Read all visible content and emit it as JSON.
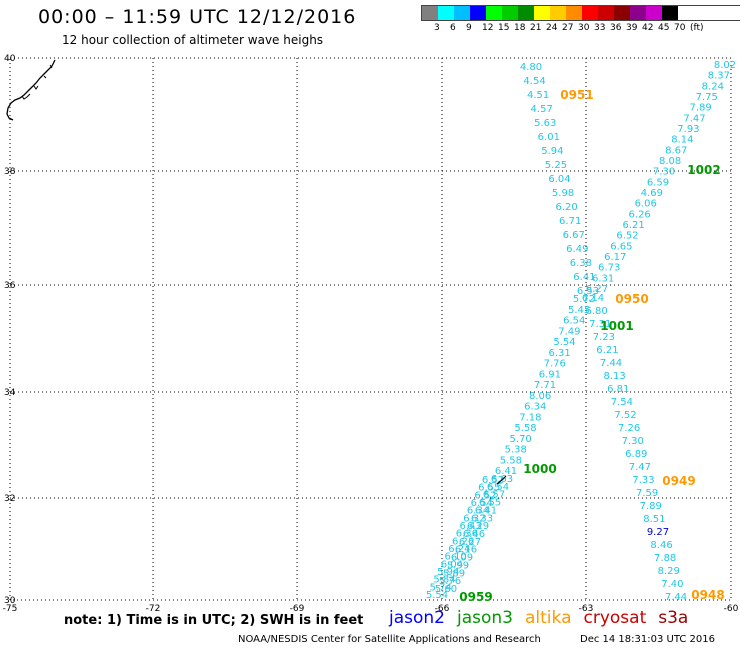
{
  "title": "00:00 – 11:59 UTC 12/12/2016",
  "subtitle": "12 hour collection of altimeter wave heighs",
  "legend": {
    "colors": [
      "#808080",
      "#00ffff",
      "#00bfff",
      "#0000ff",
      "#00ff00",
      "#00cc00",
      "#008c00",
      "#ffff00",
      "#ffcc00",
      "#ff8c00",
      "#ff0000",
      "#cc0000",
      "#8b0000",
      "#8c008c",
      "#cc00cc",
      "#000000"
    ],
    "labels": [
      "3",
      "6",
      "9",
      "12",
      "15",
      "18",
      "21",
      "24",
      "27",
      "30",
      "33",
      "36",
      "39",
      "42",
      "45",
      "70",
      "(ft)"
    ]
  },
  "axes": {
    "x_ticks": [
      "-75",
      "-72",
      "-69",
      "-66",
      "-63",
      "-60"
    ],
    "y_ticks": [
      "40",
      "38",
      "36",
      "34",
      "32",
      "30"
    ]
  },
  "note": "note: 1) Time is in UTC; 2) SWH is in feet",
  "satellites": [
    {
      "name": "jason2",
      "color": "#0000ff"
    },
    {
      "name": "jason3",
      "color": "#009900"
    },
    {
      "name": "altika",
      "color": "#ff9900"
    },
    {
      "name": "cryosat",
      "color": "#cc0000"
    },
    {
      "name": "s3a",
      "color": "#990000"
    }
  ],
  "credit": "NOAA/NESDIS Center for Satellite Applications and Research",
  "timestamp": "Dec 14 18:31:03 UTC 2016",
  "tracks": {
    "t0951": {
      "vals": [
        "4.80",
        "4.54",
        "4.51",
        "4.57",
        "5.63",
        "6.01",
        "5.94",
        "5.25",
        "6.04",
        "5.98",
        "6.20",
        "6.71",
        "6.67",
        "6.49",
        "6.38",
        "6.41",
        "6.53"
      ]
    },
    "t1002": {
      "vals": [
        "8.02",
        "8.37",
        "8.24",
        "7.75",
        "7.89",
        "7.47",
        "7.93",
        "8.14",
        "8.67",
        "8.08",
        "7.30",
        "6.59",
        "4.69",
        "6.06",
        "6.26",
        "6.21",
        "6.52",
        "6.65",
        "6.17",
        "6.73",
        "6.31",
        "6.27"
      ]
    },
    "t0950": {
      "vals": [
        "6.14",
        "6.80",
        "7.31",
        "7.23",
        "6.21",
        "7.44",
        "8.13",
        "6.81",
        "7.54",
        "7.52",
        "7.26",
        "7.30",
        "6.89",
        "7.47",
        "7.33",
        "7.59",
        "7.89",
        "8.51",
        "9.27",
        "8.46",
        "7.88",
        "8.29",
        "7.40",
        "7.44"
      ]
    },
    "t1001": {
      "vals": [
        "5.72",
        "5.45",
        "6.54",
        "7.49",
        "5.54",
        "6.31",
        "7.76",
        "6.91",
        "7.71",
        "8.06",
        "6.34",
        "7.18",
        "5.58",
        "5.70",
        "5.38",
        "5.58",
        "6.41"
      ]
    },
    "t0959": {
      "vals": [
        "6.52",
        "6.55",
        "6.52",
        "6.54",
        "6.34",
        "6.32",
        "6.43",
        "6.36",
        "6.26",
        "6.24",
        "6.10",
        "6.04",
        "5.94",
        "5.84",
        "5.74",
        "5.54"
      ]
    },
    "t1000": {
      "vals": [
        "6.63",
        "6.54",
        "6.57",
        "6.55",
        "6.41",
        "6.33",
        "6.29",
        "6.46",
        "6.27",
        "6.16",
        "6.09",
        "5.99",
        "5.89",
        "5.76",
        "5.60"
      ]
    }
  },
  "pass_labels": [
    {
      "text": "0951",
      "color": "#ff9900"
    },
    {
      "text": "1002",
      "color": "#009900"
    },
    {
      "text": "0950",
      "color": "#ff9900"
    },
    {
      "text": "1001",
      "color": "#009900"
    },
    {
      "text": "1000",
      "color": "#009900"
    },
    {
      "text": "0949",
      "color": "#ff9900"
    },
    {
      "text": "0959",
      "color": "#009900"
    },
    {
      "text": "0948",
      "color": "#ff9900"
    }
  ]
}
